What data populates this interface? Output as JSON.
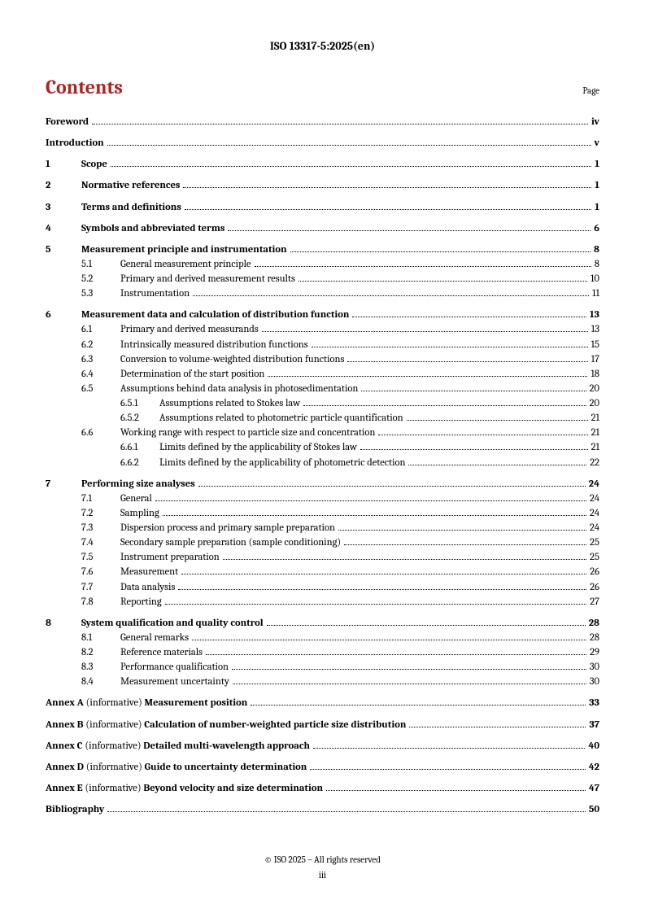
{
  "header": "ISO 13317-5:2025(en)",
  "contents_title": "Contents",
  "page_label": "Page",
  "entries": [
    {
      "lvl": 1,
      "num": "",
      "title": "Foreword",
      "pg": "iv",
      "first": true
    },
    {
      "lvl": 1,
      "num": "",
      "title": "Introduction",
      "pg": "v"
    },
    {
      "lvl": 1,
      "num": "1",
      "title": "Scope",
      "pg": "1"
    },
    {
      "lvl": 1,
      "num": "2",
      "title": "Normative references",
      "pg": "1"
    },
    {
      "lvl": 1,
      "num": "3",
      "title": "Terms and definitions",
      "pg": "1"
    },
    {
      "lvl": 1,
      "num": "4",
      "title": "Symbols and abbreviated terms",
      "pg": "6"
    },
    {
      "lvl": 1,
      "num": "5",
      "title": "Measurement principle and instrumentation",
      "pg": "8"
    },
    {
      "lvl": 2,
      "num": "5.1",
      "title": "General measurement principle",
      "pg": "8"
    },
    {
      "lvl": 2,
      "num": "5.2",
      "title": "Primary and derived measurement results",
      "pg": "10"
    },
    {
      "lvl": 2,
      "num": "5.3",
      "title": "Instrumentation",
      "pg": "11"
    },
    {
      "lvl": 1,
      "num": "6",
      "title": "Measurement data and calculation of distribution function",
      "pg": "13"
    },
    {
      "lvl": 2,
      "num": "6.1",
      "title": "Primary and derived measurands",
      "pg": "13"
    },
    {
      "lvl": 2,
      "num": "6.2",
      "title": "Intrinsically measured distribution functions",
      "pg": "15"
    },
    {
      "lvl": 2,
      "num": "6.3",
      "title": "Conversion to volume-weighted distribution functions",
      "pg": "17"
    },
    {
      "lvl": 2,
      "num": "6.4",
      "title": "Determination of the start position",
      "pg": "18"
    },
    {
      "lvl": 2,
      "num": "6.5",
      "title": "Assumptions behind data analysis in photosedimentation",
      "pg": "20"
    },
    {
      "lvl": 3,
      "num": "6.5.1",
      "title": "Assumptions related to Stokes law",
      "pg": "20"
    },
    {
      "lvl": 3,
      "num": "6.5.2",
      "title": "Assumptions related to photometric particle quantification",
      "pg": "21"
    },
    {
      "lvl": 2,
      "num": "6.6",
      "title": "Working range with respect to particle size and concentration",
      "pg": "21"
    },
    {
      "lvl": 3,
      "num": "6.6.1",
      "title": "Limits defined by the applicability of Stokes law",
      "pg": "21"
    },
    {
      "lvl": 3,
      "num": "6.6.2",
      "title": "Limits defined by the applicability of photometric detection",
      "pg": "22"
    },
    {
      "lvl": 1,
      "num": "7",
      "title": "Performing size analyses",
      "pg": "24"
    },
    {
      "lvl": 2,
      "num": "7.1",
      "title": "General",
      "pg": "24"
    },
    {
      "lvl": 2,
      "num": "7.2",
      "title": "Sampling",
      "pg": "24"
    },
    {
      "lvl": 2,
      "num": "7.3",
      "title": "Dispersion process and primary sample preparation",
      "pg": "24"
    },
    {
      "lvl": 2,
      "num": "7.4",
      "title": "Secondary sample preparation (sample conditioning)",
      "pg": "25"
    },
    {
      "lvl": 2,
      "num": "7.5",
      "title": "Instrument preparation",
      "pg": "25"
    },
    {
      "lvl": 2,
      "num": "7.6",
      "title": "Measurement",
      "pg": "26"
    },
    {
      "lvl": 2,
      "num": "7.7",
      "title": "Data analysis",
      "pg": "26"
    },
    {
      "lvl": 2,
      "num": "7.8",
      "title": "Reporting",
      "pg": "27"
    },
    {
      "lvl": 1,
      "num": "8",
      "title": "System qualification and quality control",
      "pg": "28"
    },
    {
      "lvl": 2,
      "num": "8.1",
      "title": "General remarks",
      "pg": "28"
    },
    {
      "lvl": 2,
      "num": "8.2",
      "title": "Reference materials",
      "pg": "29"
    },
    {
      "lvl": 2,
      "num": "8.3",
      "title": "Performance qualification",
      "pg": "30"
    },
    {
      "lvl": 2,
      "num": "8.4",
      "title": "Measurement uncertainty",
      "pg": "30"
    },
    {
      "lvl": 1,
      "annex": "Annex A",
      "note": "(informative)",
      "title": "Measurement position",
      "pg": "33"
    },
    {
      "lvl": 1,
      "annex": "Annex B",
      "note": "(informative)",
      "title": "Calculation of number-weighted particle size distribution",
      "pg": "37"
    },
    {
      "lvl": 1,
      "annex": "Annex C",
      "note": "(informative)",
      "title": "Detailed multi-wavelength approach",
      "pg": "40"
    },
    {
      "lvl": 1,
      "annex": "Annex D",
      "note": "(informative)",
      "title": "Guide to uncertainty determination",
      "pg": "42"
    },
    {
      "lvl": 1,
      "annex": "Annex E",
      "note": "(informative)",
      "title": "Beyond velocity and size determination",
      "pg": "47"
    },
    {
      "lvl": 1,
      "num": "",
      "title": "Bibliography",
      "pg": "50"
    }
  ],
  "footer": {
    "copyright": "© ISO 2025 – All rights reserved",
    "page": "iii"
  },
  "colors": {
    "accent": "#b22222",
    "text": "#000000",
    "bg": "#ffffff"
  }
}
